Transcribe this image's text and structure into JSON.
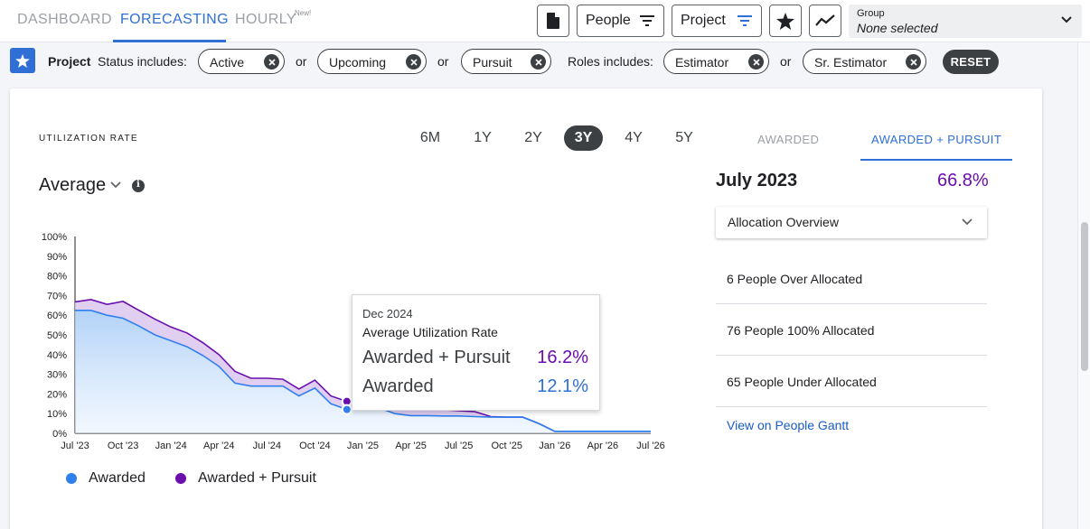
{
  "nav": {
    "tabs": [
      {
        "label": "DASHBOARD"
      },
      {
        "label": "FORECASTING"
      },
      {
        "label": "HOURLY"
      }
    ],
    "new_badge": "New!",
    "buttons": {
      "file_icon": "file-icon",
      "people_label": "People",
      "project_label": "Project",
      "star_icon": "star-icon",
      "trend_icon": "trending-icon"
    },
    "group": {
      "caption": "Group",
      "value": "None selected"
    }
  },
  "filters": {
    "entity": "Project",
    "status_label": "Status includes:",
    "status_chips": [
      "Active",
      "Upcoming",
      "Pursuit"
    ],
    "or_text": "or",
    "roles_label": "Roles includes:",
    "role_chips": [
      "Estimator",
      "Sr. Estimator"
    ],
    "reset_label": "RESET"
  },
  "card": {
    "title": "UTILIZATION RATE",
    "ranges": [
      "6M",
      "1Y",
      "2Y",
      "3Y",
      "4Y",
      "5Y"
    ],
    "active_range": "3Y",
    "metric_label": "Average"
  },
  "tooltip": {
    "date": "Dec 2024",
    "heading": "Average Utilization Rate",
    "rows": [
      {
        "label": "Awarded + Pursuit",
        "value": "16.2%"
      },
      {
        "label": "Awarded",
        "value": "12.1%"
      }
    ]
  },
  "legend": [
    {
      "label": "Awarded",
      "color": "#2f80ed"
    },
    {
      "label": "Awarded + Pursuit",
      "color": "#6a0dad"
    }
  ],
  "right_panel": {
    "tabs": [
      "AWARDED",
      "AWARDED + PURSUIT"
    ],
    "month": "July 2023",
    "rate": "66.8%",
    "dropdown_label": "Allocation Overview",
    "rows": [
      "6 People Over Allocated",
      "76 People 100% Allocated",
      "65 People Under Allocated"
    ],
    "link": "View on People Gantt"
  },
  "chart_data": {
    "type": "area",
    "x": [
      "Jul '23",
      "Aug '23",
      "Sep '23",
      "Oct '23",
      "Nov '23",
      "Dec '23",
      "Jan '24",
      "Feb '24",
      "Mar '24",
      "Apr '24",
      "May '24",
      "Jun '24",
      "Jul '24",
      "Aug '24",
      "Sep '24",
      "Oct '24",
      "Nov '24",
      "Dec '24",
      "Jan '25",
      "Feb '25",
      "Mar '25",
      "Apr '25",
      "May '25",
      "Jun '25",
      "Jul '25",
      "Aug '25",
      "Sep '25",
      "Oct '25",
      "Nov '25",
      "Dec '25",
      "Jan '26",
      "Feb '26",
      "Mar '26",
      "Apr '26",
      "May '26",
      "Jun '26",
      "Jul '26"
    ],
    "x_ticks": [
      "Jul '23",
      "Oct '23",
      "Jan '24",
      "Apr '24",
      "Jul '24",
      "Oct '24",
      "Jan '25",
      "Apr '25",
      "Jul '25",
      "Oct '25",
      "Jan '26",
      "Apr '26",
      "Jul '26"
    ],
    "y_ticks": [
      "0%",
      "10%",
      "20%",
      "30%",
      "40%",
      "50%",
      "60%",
      "70%",
      "80%",
      "90%",
      "100%"
    ],
    "ylim": [
      0,
      100
    ],
    "series": [
      {
        "name": "Awarded",
        "color": "#2f80ed",
        "values": [
          62.5,
          62.5,
          60,
          58.5,
          54.5,
          50,
          47,
          44,
          39.5,
          34,
          25.5,
          24,
          24,
          24,
          19,
          23,
          15,
          12.1,
          13,
          13,
          10,
          9,
          9,
          8.8,
          8.8,
          8.5,
          8.2,
          8.2,
          8.2,
          5,
          1,
          1,
          1,
          1,
          1,
          1,
          1
        ]
      },
      {
        "name": "Awarded + Pursuit",
        "color": "#6a0dad",
        "values": [
          66.8,
          68,
          65.5,
          67,
          62.5,
          58,
          54,
          51,
          46,
          40,
          31.5,
          28,
          28,
          27.5,
          22.5,
          27,
          19,
          16.2,
          16,
          15.5,
          13,
          12.5,
          12,
          12,
          11.5,
          11,
          8.5,
          8.2,
          8.2,
          5,
          1,
          1,
          1,
          1,
          1,
          1,
          1
        ]
      }
    ],
    "highlight": {
      "x": "Dec '24"
    },
    "legend_position": "bottom-left"
  }
}
